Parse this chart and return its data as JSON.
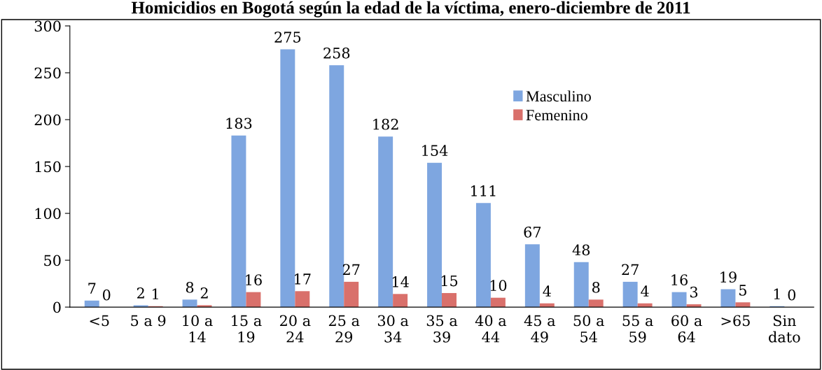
{
  "chart_data": {
    "type": "bar",
    "title": "Homicidios en Bogotá según la edad de la víctima, enero-diciembre de 2011",
    "categories": [
      "<5",
      "5 a 9",
      "10 a\n14",
      "15 a\n19",
      "20 a\n24",
      "25 a\n29",
      "30 a\n34",
      "35 a\n39",
      "40 a\n44",
      "45 a\n49",
      "50 a\n54",
      "55 a\n59",
      "60 a\n64",
      ">65",
      "Sin\ndato"
    ],
    "series": [
      {
        "name": "Masculino",
        "color": "#7ea6e0",
        "values": [
          7,
          2,
          8,
          183,
          275,
          258,
          182,
          154,
          111,
          67,
          48,
          27,
          16,
          19,
          1
        ]
      },
      {
        "name": "Femenino",
        "color": "#d9706b",
        "values": [
          0,
          1,
          2,
          16,
          17,
          27,
          14,
          15,
          10,
          4,
          8,
          4,
          3,
          5,
          0
        ]
      }
    ],
    "ylim": [
      0,
      300
    ],
    "yticks": [
      0,
      50,
      100,
      150,
      200,
      250,
      300
    ],
    "data_labels": true,
    "grid": false,
    "legend": "top right"
  }
}
